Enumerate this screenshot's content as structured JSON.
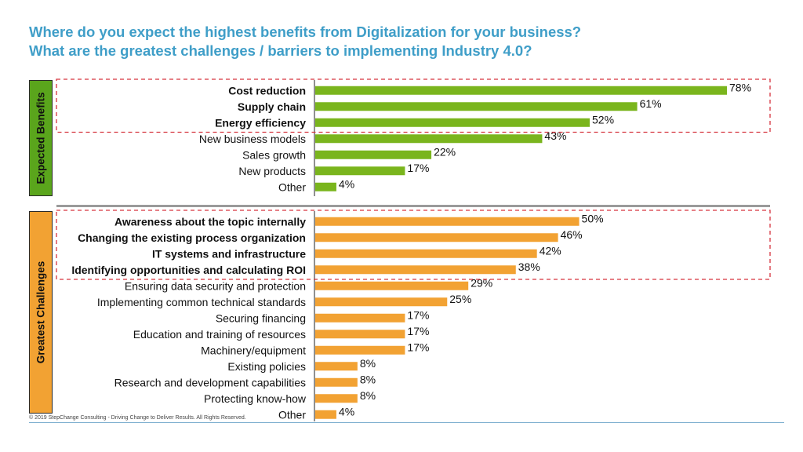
{
  "titles": {
    "line1": "Where do you expect the highest benefits from Digitalization for your business?",
    "line2": "What are the greatest challenges / barriers to implementing Industry 4.0?"
  },
  "sections": {
    "benefits_label": "Expected Benefits",
    "challenges_label": "Greatest Challenges"
  },
  "footer": {
    "copyright": "© 2019 StepChange Consulting - Driving Change to Deliver Results. All Rights Reserved."
  },
  "colors": {
    "title": "#3f9ec8",
    "benefits": "#7ab51d",
    "challenges": "#f2a233",
    "highlight_box": "#d6343f"
  },
  "chart_data": [
    {
      "type": "bar",
      "orientation": "horizontal",
      "value_suffix": "%",
      "categories": [
        "Cost reduction",
        "Supply chain",
        "Energy efficiency",
        "New business models",
        "Sales growth",
        "New products",
        "Other"
      ],
      "values": [
        78,
        61,
        52,
        43,
        22,
        17,
        4
      ],
      "highlighted": [
        true,
        true,
        true,
        false,
        false,
        false,
        false
      ],
      "color": "#7ab51d"
    },
    {
      "type": "bar",
      "orientation": "horizontal",
      "value_suffix": "%",
      "categories": [
        "Awareness about the topic internally",
        "Changing the existing process organization",
        "IT systems and infrastructure",
        "Identifying opportunities and calculating ROI",
        "Ensuring data security and protection",
        "Implementing common technical standards",
        "Securing financing",
        "Education and training of resources",
        "Machinery/equipment",
        "Existing policies",
        "Research and development capabilities",
        "Protecting know-how",
        "Other"
      ],
      "values": [
        50,
        46,
        42,
        38,
        29,
        25,
        17,
        17,
        17,
        8,
        8,
        8,
        4
      ],
      "highlighted": [
        true,
        true,
        true,
        true,
        false,
        false,
        false,
        false,
        false,
        false,
        false,
        false,
        false
      ],
      "color": "#f2a233"
    }
  ]
}
